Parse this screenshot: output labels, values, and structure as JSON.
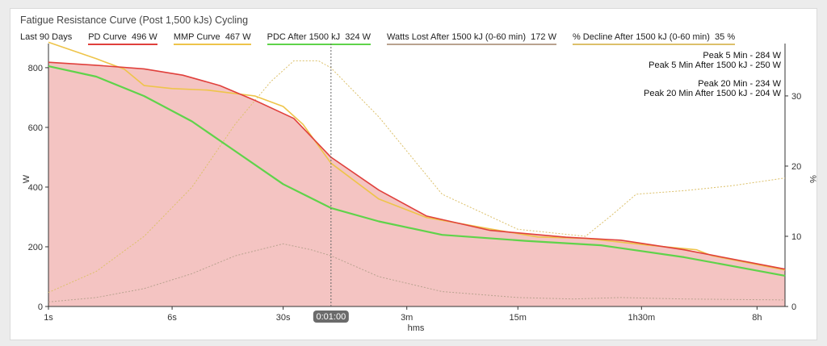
{
  "header": {
    "title": "Fatigue Resistance Curve (Post 1,500 kJs) Cycling",
    "period": "Last 90 Days"
  },
  "legend": [
    {
      "label": "PD Curve",
      "value": "496 W",
      "color": "#e0403c"
    },
    {
      "label": "MMP Curve",
      "value": "467 W",
      "color": "#eec44a"
    },
    {
      "label": "PDC After 1500 kJ",
      "value": "324 W",
      "color": "#5fd34a"
    },
    {
      "label": "Watts Lost After 1500 kJ (0-60 min)",
      "value": "172 W",
      "color": "#b9a28f"
    },
    {
      "label": "% Decline After 1500 kJ (0-60 min)",
      "value": "35 %",
      "color": "#dcc06a"
    }
  ],
  "annotations": [
    "Peak 5 Min - 284 W",
    "Peak 5 Min After 1500 kJ - 250 W",
    "Peak 20 Min - 234 W",
    "Peak 20 Min After 1500 kJ - 204 W"
  ],
  "cursor_label": "0:01:00",
  "chart_data": {
    "type": "line",
    "xlabel": "hms",
    "ylabel": "W",
    "y2label": "%",
    "x_scale": "log",
    "x_unit": "seconds",
    "xlim": [
      1,
      43200
    ],
    "ylim": [
      0,
      870
    ],
    "y2lim": [
      0,
      37
    ],
    "x_ticks": [
      {
        "x": 1,
        "label": "1s"
      },
      {
        "x": 6,
        "label": "6s"
      },
      {
        "x": 30,
        "label": "30s"
      },
      {
        "x": 180,
        "label": "3m"
      },
      {
        "x": 900,
        "label": "15m"
      },
      {
        "x": 5400,
        "label": "1h30m"
      },
      {
        "x": 28800,
        "label": "8h"
      }
    ],
    "y_ticks": [
      0,
      200,
      400,
      600,
      800
    ],
    "y2_ticks": [
      0,
      10,
      20,
      30
    ],
    "cursor_x": 60,
    "series": [
      {
        "name": "PD Curve",
        "axis": "left",
        "color": "#e0403c",
        "fill": "#f4c4c2",
        "width": 1.6,
        "points": [
          [
            1,
            818
          ],
          [
            2,
            808
          ],
          [
            4,
            796
          ],
          [
            7,
            775
          ],
          [
            12,
            740
          ],
          [
            20,
            690
          ],
          [
            35,
            630
          ],
          [
            60,
            500
          ],
          [
            120,
            390
          ],
          [
            240,
            303
          ],
          [
            600,
            255
          ],
          [
            1800,
            232
          ],
          [
            4000,
            222
          ],
          [
            10000,
            190
          ],
          [
            43200,
            125
          ]
        ]
      },
      {
        "name": "MMP Curve",
        "axis": "left",
        "color": "#eec44a",
        "width": 1.6,
        "points": [
          [
            1,
            885
          ],
          [
            2,
            830
          ],
          [
            3,
            795
          ],
          [
            4,
            740
          ],
          [
            6,
            730
          ],
          [
            10,
            725
          ],
          [
            20,
            705
          ],
          [
            30,
            670
          ],
          [
            40,
            610
          ],
          [
            60,
            480
          ],
          [
            120,
            360
          ],
          [
            240,
            298
          ],
          [
            600,
            260
          ],
          [
            1200,
            233
          ],
          [
            2400,
            228
          ],
          [
            6000,
            205
          ],
          [
            12000,
            190
          ],
          [
            15000,
            170
          ],
          [
            43200,
            122
          ]
        ]
      },
      {
        "name": "PDC After 1500 kJ",
        "axis": "left",
        "color": "#5fd34a",
        "width": 2.2,
        "points": [
          [
            1,
            805
          ],
          [
            2,
            770
          ],
          [
            4,
            705
          ],
          [
            8,
            620
          ],
          [
            15,
            520
          ],
          [
            30,
            410
          ],
          [
            60,
            330
          ],
          [
            120,
            285
          ],
          [
            300,
            240
          ],
          [
            1000,
            220
          ],
          [
            3000,
            205
          ],
          [
            10000,
            165
          ],
          [
            43200,
            103
          ]
        ]
      },
      {
        "name": "Watts Lost After 1500 kJ (0-60 min)",
        "axis": "left",
        "color": "#b9a28f",
        "width": 1,
        "dashed": true,
        "points": [
          [
            1,
            15
          ],
          [
            2,
            30
          ],
          [
            4,
            60
          ],
          [
            8,
            110
          ],
          [
            15,
            170
          ],
          [
            30,
            210
          ],
          [
            45,
            190
          ],
          [
            60,
            170
          ],
          [
            120,
            100
          ],
          [
            300,
            50
          ],
          [
            900,
            30
          ],
          [
            2000,
            25
          ],
          [
            4000,
            30
          ],
          [
            10000,
            25
          ],
          [
            43200,
            22
          ]
        ]
      },
      {
        "name": "% Decline After 1500 kJ (0-60 min)",
        "axis": "right",
        "color": "#dcc06a",
        "width": 1,
        "dashed": true,
        "points": [
          [
            1,
            2
          ],
          [
            2,
            5
          ],
          [
            4,
            10
          ],
          [
            8,
            17
          ],
          [
            15,
            26
          ],
          [
            25,
            32
          ],
          [
            35,
            35
          ],
          [
            50,
            35
          ],
          [
            60,
            34
          ],
          [
            120,
            27
          ],
          [
            300,
            16
          ],
          [
            900,
            11
          ],
          [
            2400,
            10
          ],
          [
            3500,
            13
          ],
          [
            5000,
            16
          ],
          [
            10000,
            16.5
          ],
          [
            20000,
            17.2
          ],
          [
            43200,
            18.3
          ]
        ]
      }
    ]
  }
}
